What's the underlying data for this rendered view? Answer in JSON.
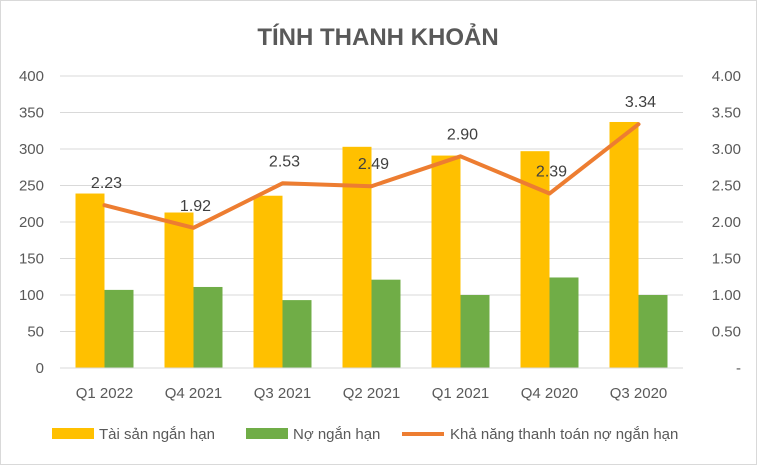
{
  "chart_data": {
    "type": "bar",
    "title": "TÍNH THANH KHOẢN",
    "categories": [
      "Q1 2022",
      "Q4 2021",
      "Q3 2021",
      "Q2 2021",
      "Q1 2021",
      "Q4 2020",
      "Q3 2020"
    ],
    "series": [
      {
        "name": "Tài sản ngắn hạn",
        "type": "bar",
        "axis": "left",
        "color": "#FFC000",
        "values": [
          239,
          213,
          236,
          303,
          291,
          297,
          337
        ]
      },
      {
        "name": "Nợ ngắn hạn",
        "type": "bar",
        "axis": "left",
        "color": "#70AD47",
        "values": [
          107,
          111,
          93,
          121,
          100,
          124,
          100
        ]
      },
      {
        "name": "Khả năng thanh toán nợ ngắn hạn",
        "type": "line",
        "axis": "right",
        "color": "#ED7D31",
        "values": [
          2.23,
          1.92,
          2.53,
          2.49,
          2.9,
          2.39,
          3.34
        ],
        "labels": [
          "2.23",
          "1.92",
          "2.53",
          "2.49",
          "2.90",
          "2.39",
          "3.34"
        ]
      }
    ],
    "left_axis": {
      "min": 0,
      "max": 400,
      "ticks": [
        "0",
        "50",
        "100",
        "150",
        "200",
        "250",
        "300",
        "350",
        "400"
      ]
    },
    "right_axis": {
      "min": 0,
      "max": 4,
      "ticks": [
        "-",
        "0.50",
        "1.00",
        "1.50",
        "2.00",
        "2.50",
        "3.00",
        "3.50",
        "4.00"
      ]
    },
    "grid": true,
    "legend_position": "bottom"
  }
}
